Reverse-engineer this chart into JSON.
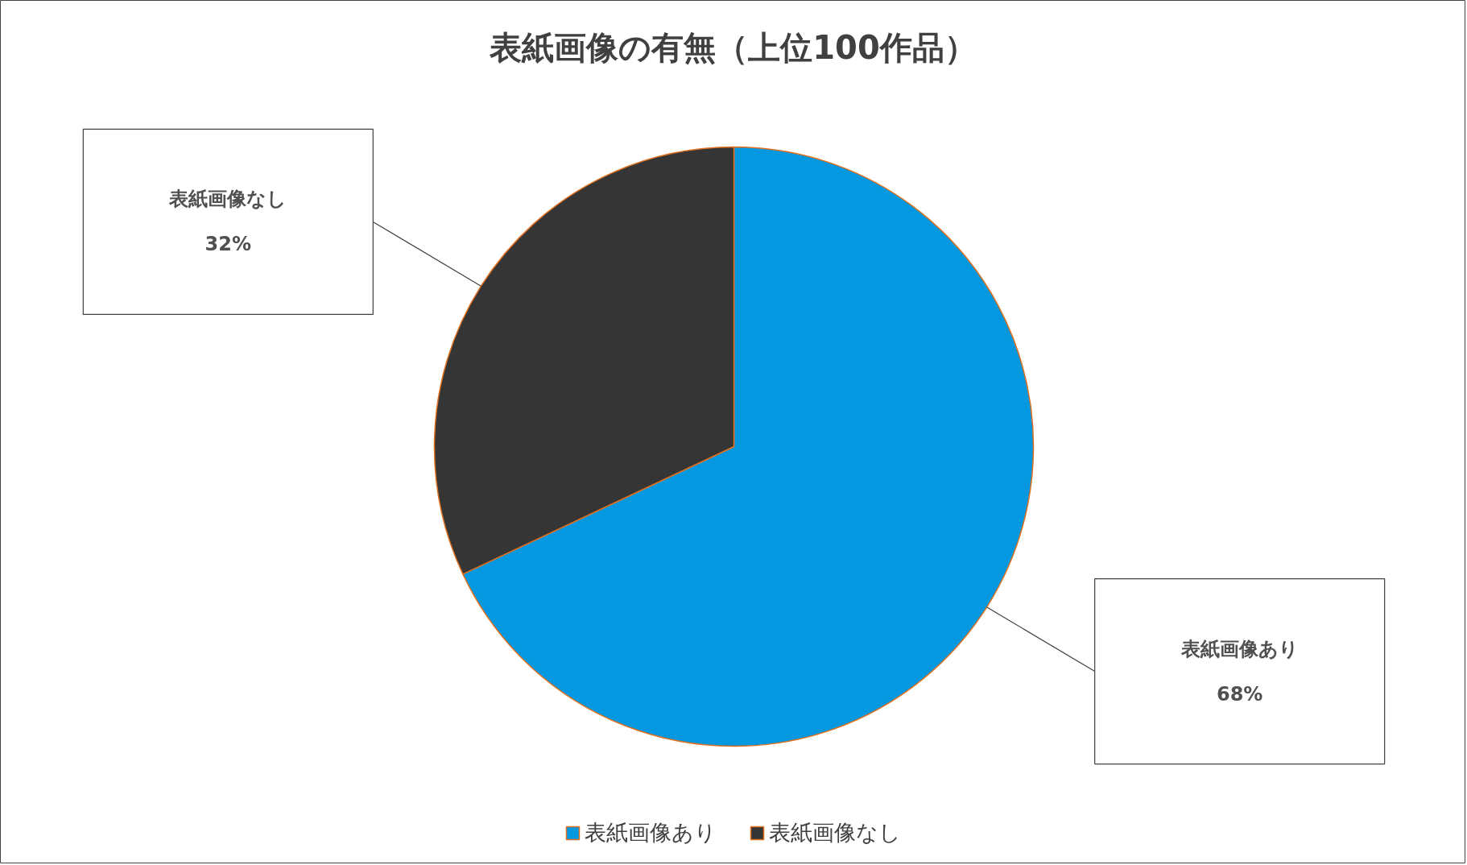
{
  "chart_data": {
    "type": "pie",
    "title": "表紙画像の有無（上位100作品）",
    "categories": [
      "表紙画像あり",
      "表紙画像なし"
    ],
    "values": [
      68,
      32
    ],
    "colors": [
      "#0398e0",
      "#353535"
    ],
    "value_labels": [
      "68%",
      "32%"
    ],
    "legend": "bottom"
  }
}
